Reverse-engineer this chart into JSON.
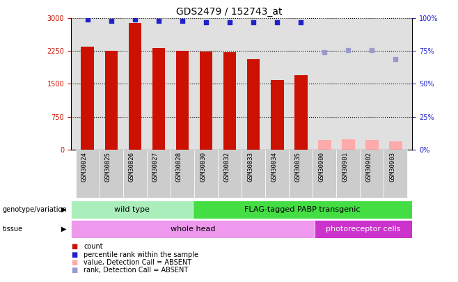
{
  "title": "GDS2479 / 152743_at",
  "samples": [
    "GSM30824",
    "GSM30825",
    "GSM30826",
    "GSM30827",
    "GSM30828",
    "GSM30830",
    "GSM30832",
    "GSM30833",
    "GSM30834",
    "GSM30835",
    "GSM30900",
    "GSM30901",
    "GSM30902",
    "GSM30903"
  ],
  "counts": [
    2350,
    2250,
    2900,
    2320,
    2250,
    2240,
    2220,
    2060,
    1590,
    1700,
    215,
    230,
    225,
    190
  ],
  "percentile_ranks": [
    99,
    98,
    99,
    98,
    98,
    97,
    97,
    97,
    97,
    97,
    null,
    null,
    null,
    null
  ],
  "absent_ranks": [
    null,
    null,
    null,
    null,
    null,
    null,
    null,
    null,
    null,
    null,
    74,
    76,
    76,
    69
  ],
  "count_color_present": "#cc1100",
  "count_color_absent": "#ffaaaa",
  "percentile_color_present": "#2222cc",
  "percentile_color_absent": "#9999cc",
  "ylim_left": [
    0,
    3000
  ],
  "ylim_right": [
    0,
    100
  ],
  "yticks_left": [
    0,
    750,
    1500,
    2250,
    3000
  ],
  "yticks_right": [
    0,
    25,
    50,
    75,
    100
  ],
  "genotype_groups": [
    {
      "label": "wild type",
      "start": 0,
      "end": 5,
      "color": "#aaeebb"
    },
    {
      "label": "FLAG-tagged PABP transgenic",
      "start": 5,
      "end": 14,
      "color": "#44dd44"
    }
  ],
  "tissue_groups": [
    {
      "label": "whole head",
      "start": 0,
      "end": 10,
      "color": "#ee99ee"
    },
    {
      "label": "photoreceptor cells",
      "start": 10,
      "end": 14,
      "color": "#cc33cc"
    }
  ],
  "legend_items": [
    {
      "label": "count",
      "color": "#cc1100"
    },
    {
      "label": "percentile rank within the sample",
      "color": "#2222cc"
    },
    {
      "label": "value, Detection Call = ABSENT",
      "color": "#ffaaaa"
    },
    {
      "label": "rank, Detection Call = ABSENT",
      "color": "#9999cc"
    }
  ],
  "bar_width": 0.55,
  "background_color": "#ffffff",
  "plot_bg": "#e0e0e0",
  "title_fontsize": 10,
  "tick_fontsize": 7,
  "label_fontsize": 8
}
